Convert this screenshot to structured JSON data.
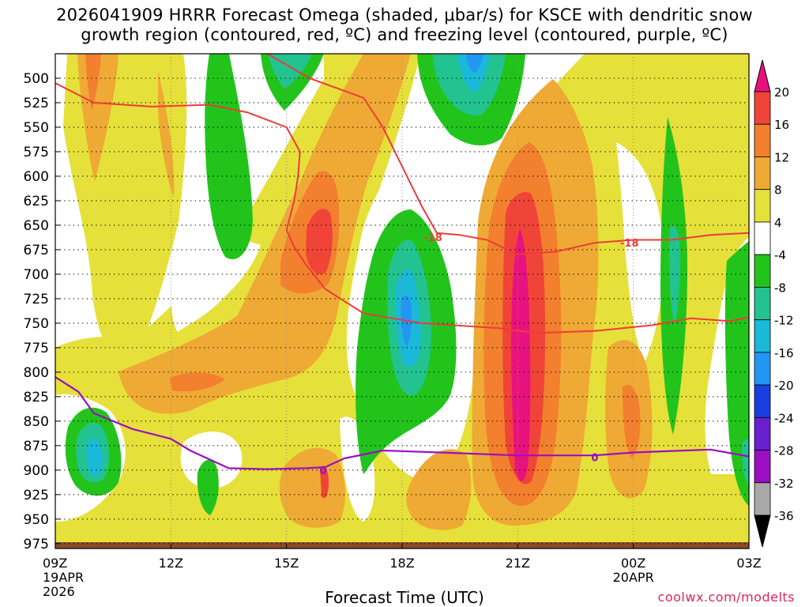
{
  "title": {
    "line1": "2026041909 HRRR Forecast Omega (shaded, μbar/s) for KSCE with dendritic snow",
    "line2": "growth region (contoured, red, ºC) and freezing level (contoured, purple, ºC)"
  },
  "credit": "coolwx.com/modelts",
  "chart_data": {
    "type": "heatmap",
    "title": "2026041909 HRRR Forecast Omega (shaded, μbar/s) for KSCE with dendritic snow growth region (contoured, red, ºC) and freezing level (contoured, purple, ºC)",
    "xlabel": "Forecast Time (UTC)",
    "ylabel": "",
    "x_ticks": [
      {
        "hour": 0,
        "label": "09Z",
        "sub": [
          "19APR",
          "2026"
        ]
      },
      {
        "hour": 3,
        "label": "12Z",
        "sub": []
      },
      {
        "hour": 6,
        "label": "15Z",
        "sub": []
      },
      {
        "hour": 9,
        "label": "18Z",
        "sub": []
      },
      {
        "hour": 12,
        "label": "21Z",
        "sub": []
      },
      {
        "hour": 15,
        "label": "00Z",
        "sub": [
          "20APR"
        ]
      },
      {
        "hour": 18,
        "label": "03Z",
        "sub": []
      }
    ],
    "y_axis": {
      "scale": "pressure",
      "units": "mb",
      "reversed": true,
      "range": [
        980,
        475
      ]
    },
    "y_ticks": [
      500,
      525,
      550,
      575,
      600,
      625,
      650,
      675,
      700,
      725,
      750,
      775,
      800,
      825,
      850,
      875,
      900,
      925,
      950,
      975
    ],
    "grid": true,
    "colorbar": {
      "labels": [
        20,
        16,
        12,
        8,
        4,
        -4,
        -8,
        -12,
        -16,
        -20,
        -24,
        -28,
        -32,
        -36
      ],
      "bins": [
        {
          "range": ">20",
          "color": "#e8127e"
        },
        {
          "range": "16 to 20",
          "color": "#f04438"
        },
        {
          "range": "12 to 16",
          "color": "#f2802e"
        },
        {
          "range": "8 to 12",
          "color": "#eeaa35"
        },
        {
          "range": "4 to 8",
          "color": "#e6e03a"
        },
        {
          "range": "-4 to 4",
          "color": "#ffffff"
        },
        {
          "range": "-8 to -4",
          "color": "#22c41c"
        },
        {
          "range": "-12 to -8",
          "color": "#22c390"
        },
        {
          "range": "-16 to -12",
          "color": "#1ab8d9"
        },
        {
          "range": "-20 to -16",
          "color": "#2196f3"
        },
        {
          "range": "-24 to -20",
          "color": "#1a3fe0"
        },
        {
          "range": "-28 to -24",
          "color": "#6a1fd0"
        },
        {
          "range": "-32 to -28",
          "color": "#9a10c0"
        },
        {
          "range": "-36 to -32",
          "color": "#a9a9a9"
        },
        {
          "range": "<-36",
          "color": "#000000"
        }
      ]
    },
    "contours": [
      {
        "name": "-18",
        "color": "#ee3b3b",
        "labels": [
          {
            "hour": 9.8,
            "p": 662,
            "text": "-18"
          },
          {
            "hour": 14.9,
            "p": 668,
            "text": "-18"
          }
        ]
      },
      {
        "name": "0",
        "color": "#9a10c0",
        "labels": [
          {
            "hour": 6.95,
            "p": 900,
            "text": "0"
          },
          {
            "hour": 14.0,
            "p": 887,
            "text": "0"
          }
        ]
      }
    ],
    "dgz_upper_line": [
      [
        0,
        505
      ],
      [
        1,
        525
      ],
      [
        2.5,
        529
      ],
      [
        4,
        527
      ],
      [
        5,
        535
      ],
      [
        6,
        550
      ],
      [
        6.35,
        575
      ],
      [
        6.3,
        600
      ],
      [
        6.2,
        625
      ],
      [
        6.0,
        655
      ],
      [
        6.2,
        672
      ],
      [
        6.5,
        690
      ],
      [
        7,
        715
      ],
      [
        8,
        740
      ],
      [
        9.5,
        750
      ],
      [
        11.5,
        755
      ],
      [
        12.5,
        760
      ],
      [
        14,
        758
      ],
      [
        15.5,
        752
      ],
      [
        16.5,
        745
      ],
      [
        17.5,
        748
      ],
      [
        18,
        744
      ]
    ],
    "dgz_lower_line": [
      [
        5.5,
        475
      ],
      [
        6.6,
        500
      ],
      [
        8,
        520
      ],
      [
        8.5,
        550
      ],
      [
        9,
        590
      ],
      [
        9.5,
        630
      ],
      [
        9.9,
        658
      ],
      [
        10.5,
        660
      ],
      [
        11.2,
        665
      ],
      [
        12,
        680
      ],
      [
        13,
        677
      ],
      [
        14,
        668
      ],
      [
        15,
        665
      ],
      [
        16,
        665
      ],
      [
        17,
        660
      ],
      [
        18,
        658
      ]
    ],
    "freezing_line": [
      [
        0,
        805
      ],
      [
        0.6,
        820
      ],
      [
        1,
        842
      ],
      [
        2,
        858
      ],
      [
        3,
        868
      ],
      [
        3.5,
        880
      ],
      [
        4.5,
        898
      ],
      [
        5.5,
        899
      ],
      [
        6.5,
        898
      ],
      [
        7,
        897
      ],
      [
        7.5,
        888
      ],
      [
        8.5,
        880
      ],
      [
        10,
        882
      ],
      [
        12,
        885
      ],
      [
        14,
        885
      ],
      [
        15,
        882
      ],
      [
        17,
        879
      ],
      [
        18,
        886
      ]
    ],
    "ground": {
      "color": "#8b4a28",
      "top_p": 974
    }
  }
}
